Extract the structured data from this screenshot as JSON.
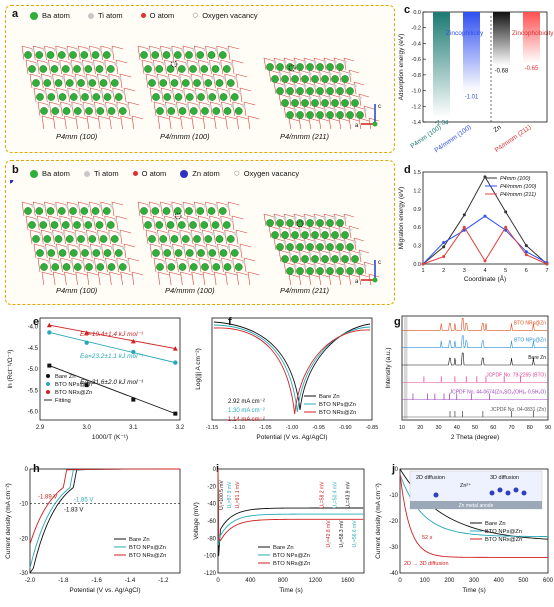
{
  "panel_a": {
    "label": "a",
    "legend": {
      "ba": "Ba atom",
      "ti": "Ti atom",
      "o": "O atom",
      "vac": "Oxygen vacancy"
    },
    "structures": [
      "P4mm (100)",
      "P4/mmm (100)",
      "P4/mmm (211)"
    ],
    "axes": {
      "c": "c",
      "a": "a"
    }
  },
  "panel_b": {
    "label": "b",
    "legend": {
      "ba": "Ba atom",
      "ti": "Ti atom",
      "o": "O atom",
      "zn": "Zn atom",
      "vac": "Oxygen vacancy"
    },
    "structures": [
      "P4mm (100)",
      "P4/mmm (100)",
      "P4/mmm (211)"
    ],
    "axes": {
      "c": "c",
      "a": "a"
    }
  },
  "panel_c": {
    "label": "c",
    "ylabel": "Adsorption energy (eV)",
    "zincophilicity": "Zincophilicity",
    "zincophobicity": "Zincophobicity",
    "colors": {
      "bar1": "#1b7a72",
      "bar2": "#2f4ff0",
      "bar3": "#111111",
      "bar4": "#ff5050"
    }
  },
  "panel_d": {
    "label": "d",
    "colors": {
      "s1": "#333333",
      "s2": "#2f4ff0",
      "s3": "#e04040"
    }
  },
  "panel_e": {
    "label": "e",
    "ea1": "Ea=19.4±1.4 kJ mol⁻¹",
    "ea2": "Ea=23.2±1.1 kJ mol⁻¹",
    "ea3": "Ea=31.6±2.0 kJ mol⁻¹",
    "legend": [
      "Bare Zn",
      "BTO NPs@Zn",
      "BTO NRs@Zn",
      "Fitting"
    ]
  },
  "panel_f": {
    "label": "f",
    "currents": [
      "2.92 mA cm⁻²",
      "1.30 mA cm⁻²",
      "1.14 mA cm⁻²"
    ],
    "legend": [
      "Bare Zn",
      "BTO NPs@Zn",
      "BTO NRs@Zn"
    ]
  },
  "panel_g": {
    "label": "g",
    "traces": [
      "BTO NRs@Zn",
      "BTO NPs@Zn",
      "Bare Zn",
      "JCPDF No. 79-2265 (BTO)",
      "JCPDF No. 44-0674(Zn₄SO₄(OH)₆·0.5H₂O)",
      "JCPDF No. 04-0831 (Zn)"
    ],
    "ylabel": "Intensity (a.u.)",
    "xlabel": "2 Theta (degree)"
  },
  "panel_h": {
    "label": "h",
    "v1": "-1.89 V",
    "v2": "-1.85 V",
    "v3": "-1.83 V",
    "legend": [
      "Bare Zn",
      "BTO NPs@Zn",
      "BTO NRs@Zn"
    ]
  },
  "panel_i": {
    "label": "i",
    "annotations": [
      "U₁=100.5 mV",
      "U₁=87.9 mV",
      "U₁=81.1 mV",
      "U₁=58.2 mV",
      "U₁=50.4 mV",
      "U₁=43.9 mV",
      "U₂=42.8 mV",
      "U₂=58.3 mV",
      "U₂=56.6 mV"
    ],
    "legend": [
      "Bare Zn",
      "BTO NPs@Zn",
      "BTO NRs@Zn"
    ]
  },
  "panel_j": {
    "label": "j",
    "diffusion2d": "2D diffusion",
    "diffusion3d": "3D diffusion",
    "zn_ion": "Zn²⁺",
    "anode": "Zn metal anode",
    "time_label": "52 s",
    "bottom_label": "2D → 3D diffusion",
    "legend": [
      "Bare Zn",
      "BTO NPs@Zn",
      "BTO NRs@Zn"
    ]
  },
  "chart_data": [
    {
      "type": "bar",
      "id": "c",
      "categories": [
        "P4mm (100)",
        "P4/mmm (100)",
        "Zn",
        "P4/mmm (211)"
      ],
      "values": [
        -1.34,
        -1.01,
        -0.68,
        -0.65
      ],
      "ylabel": "Adsorption energy (eV)",
      "ylim": [
        0,
        -1.4
      ],
      "yticks": [
        0.0,
        -0.2,
        -0.4,
        -0.6,
        -0.8,
        -1.0,
        -1.2,
        -1.4
      ]
    },
    {
      "type": "line",
      "id": "d",
      "x": [
        1,
        2,
        3,
        4,
        5,
        6,
        7
      ],
      "series": [
        {
          "name": "P4mm (100)",
          "values": [
            0.0,
            0.28,
            0.8,
            1.42,
            0.85,
            0.3,
            0.0
          ]
        },
        {
          "name": "P4/mmm (100)",
          "values": [
            0.0,
            0.35,
            0.55,
            0.78,
            0.55,
            0.2,
            0.02
          ]
        },
        {
          "name": "P4/mmm (211)",
          "values": [
            0.0,
            0.12,
            0.6,
            0.05,
            0.6,
            0.15,
            0.0
          ]
        }
      ],
      "xlabel": "Coordinate (Å)",
      "ylabel": "Migration energy (eV)",
      "xlim": [
        1,
        7
      ],
      "ylim": [
        0,
        1.5
      ],
      "yticks": [
        0.0,
        0.3,
        0.6,
        0.9,
        1.2,
        1.5
      ]
    },
    {
      "type": "scatter",
      "id": "e",
      "xlabel": "1000/T (K⁻¹)",
      "ylabel": "ln (Rct⁻¹/Ω⁻¹)",
      "xlim": [
        2.9,
        3.2
      ],
      "ylim": [
        -6.2,
        -3.8
      ],
      "xticks": [
        2.9,
        3.0,
        3.1,
        3.2
      ],
      "yticks": [
        -4.0,
        -4.5,
        -5.0,
        -5.5,
        -6.0
      ],
      "series": [
        {
          "name": "Bare Zn",
          "x": [
            2.92,
            3.0,
            3.1,
            3.19
          ],
          "values": [
            -4.92,
            -5.38,
            -5.72,
            -6.05
          ]
        },
        {
          "name": "BTO NPs@Zn",
          "x": [
            2.92,
            3.0,
            3.1,
            3.19
          ],
          "values": [
            -4.14,
            -4.38,
            -4.6,
            -4.85
          ]
        },
        {
          "name": "BTO NRs@Zn",
          "x": [
            2.92,
            3.0,
            3.1,
            3.19
          ],
          "values": [
            -3.97,
            -4.15,
            -4.35,
            -4.52
          ]
        }
      ]
    },
    {
      "type": "line",
      "id": "f",
      "xlabel": "Potential (V vs. Ag/AgCl)",
      "ylabel": "Log(|j| A cm⁻²)",
      "xlim": [
        -1.15,
        -0.85
      ],
      "xticks": [
        -1.15,
        -1.1,
        -1.05,
        -1.0,
        -0.95,
        -0.9,
        -0.85
      ],
      "series": [
        {
          "name": "Bare Zn",
          "corrosion_potential": -0.985
        },
        {
          "name": "BTO NPs@Zn",
          "corrosion_potential": -0.99
        },
        {
          "name": "BTO NRs@Zn",
          "corrosion_potential": -0.995
        }
      ]
    },
    {
      "type": "line",
      "id": "g",
      "xlabel": "2 Theta (degree)",
      "ylabel": "Intensity (a.u.)",
      "xlim": [
        10,
        90
      ],
      "xticks": [
        10,
        20,
        30,
        40,
        50,
        60,
        70,
        80,
        90
      ]
    },
    {
      "type": "line",
      "id": "h",
      "xlabel": "Potential (V vs. Ag/AgCl)",
      "ylabel": "Current density (mA cm⁻²)",
      "xlim": [
        -2.0,
        -1.1
      ],
      "ylim": [
        -30,
        0
      ],
      "xticks": [
        -2.0,
        -1.8,
        -1.6,
        -1.4,
        -1.2
      ],
      "yticks": [
        0,
        -10,
        -20,
        -30
      ],
      "series": [
        {
          "name": "Bare Zn",
          "onset_potential": -1.83
        },
        {
          "name": "BTO NPs@Zn",
          "onset_potential": -1.85
        },
        {
          "name": "BTO NRs@Zn",
          "onset_potential": -1.89
        }
      ]
    },
    {
      "type": "line",
      "id": "i",
      "xlabel": "Time (s)",
      "ylabel": "Voltage (mV)",
      "xlim": [
        0,
        1800
      ],
      "ylim": [
        -120,
        0
      ],
      "xticks": [
        0,
        400,
        800,
        1200,
        1600
      ],
      "yticks": [
        0,
        -20,
        -40,
        -60,
        -80,
        -100,
        -120
      ]
    },
    {
      "type": "line",
      "id": "j",
      "xlabel": "Time (s)",
      "ylabel": "Current density (mA cm⁻²)",
      "xlim": [
        0,
        600
      ],
      "ylim": [
        -40,
        0
      ],
      "xticks": [
        0,
        100,
        200,
        300,
        400,
        500,
        600
      ],
      "yticks": [
        0,
        -10,
        -20,
        -30,
        -40
      ]
    }
  ]
}
